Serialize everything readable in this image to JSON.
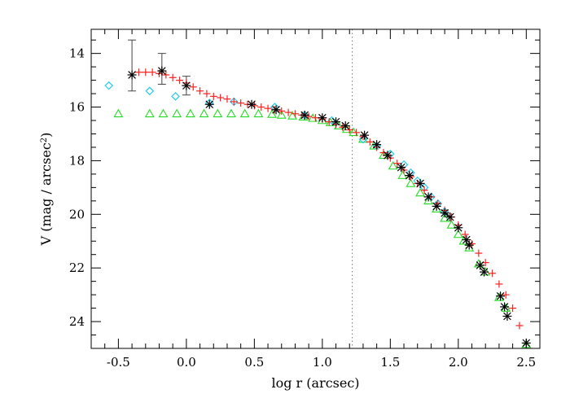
{
  "chart_data": {
    "type": "scatter",
    "title": "",
    "xlabel": "log r (arcsec)",
    "ylabel": {
      "prefix": "V (mag / arcsec",
      "superscript": "2",
      "suffix": ")"
    },
    "xlim": [
      -0.7,
      2.6
    ],
    "ylim": [
      25,
      13.1
    ],
    "y_inverted": true,
    "x_ticks": [
      -0.5,
      0.0,
      0.5,
      1.0,
      1.5,
      2.0,
      2.5
    ],
    "x_tick_labels": [
      "-0.5",
      "0.0",
      "0.5",
      "1.0",
      "1.5",
      "2.0",
      "2.5"
    ],
    "y_ticks": [
      14,
      16,
      18,
      20,
      22,
      24
    ],
    "y_tick_labels": [
      "14",
      "16",
      "18",
      "20",
      "22",
      "24"
    ],
    "vline": {
      "x": 1.22,
      "style": "dotted"
    },
    "grid": false,
    "series": [
      {
        "marker": "plus",
        "color": "#ff2020",
        "x": [
          -0.35,
          -0.3,
          -0.25,
          -0.2,
          -0.15,
          -0.1,
          -0.05,
          0.0,
          0.05,
          0.1,
          0.15,
          0.2,
          0.25,
          0.3,
          0.35,
          0.4,
          0.45,
          0.5,
          0.55,
          0.6,
          0.65,
          0.7,
          0.75,
          0.8,
          0.85,
          0.9,
          0.95,
          1.0,
          1.05,
          1.1,
          1.15,
          1.2,
          1.25,
          1.3,
          1.35,
          1.4,
          1.45,
          1.5,
          1.55,
          1.6,
          1.65,
          1.7,
          1.75,
          1.8,
          1.85,
          1.9,
          1.95,
          2.0,
          2.05,
          2.1,
          2.15,
          2.2,
          2.25,
          2.3,
          2.35,
          2.4,
          2.45
        ],
        "y": [
          14.7,
          14.7,
          14.7,
          14.75,
          14.8,
          14.9,
          15.0,
          15.1,
          15.25,
          15.4,
          15.5,
          15.6,
          15.65,
          15.7,
          15.8,
          15.85,
          15.9,
          15.95,
          16.0,
          16.05,
          16.1,
          16.15,
          16.2,
          16.25,
          16.3,
          16.35,
          16.4,
          16.45,
          16.55,
          16.65,
          16.75,
          16.85,
          16.95,
          17.1,
          17.3,
          17.5,
          17.7,
          17.9,
          18.1,
          18.35,
          18.6,
          18.85,
          19.1,
          19.35,
          19.6,
          19.85,
          20.1,
          20.4,
          20.75,
          21.1,
          21.45,
          21.8,
          22.2,
          22.6,
          23.0,
          23.5,
          24.15
        ]
      },
      {
        "marker": "asterisk",
        "color": "#000000",
        "x": [
          -0.4,
          -0.18,
          0.0,
          0.17,
          0.48,
          0.66,
          0.87,
          1.0,
          1.1,
          1.17,
          1.31,
          1.4,
          1.48,
          1.58,
          1.64,
          1.72,
          1.78,
          1.84,
          1.9,
          1.94,
          2.0,
          2.06,
          2.08,
          2.16,
          2.19,
          2.31,
          2.34,
          2.36,
          2.5
        ],
        "y": [
          14.8,
          14.65,
          15.2,
          15.9,
          15.9,
          16.1,
          16.3,
          16.4,
          16.55,
          16.7,
          17.05,
          17.4,
          17.8,
          18.25,
          18.55,
          18.85,
          19.35,
          19.7,
          19.95,
          20.1,
          20.5,
          20.95,
          21.15,
          21.9,
          22.15,
          23.05,
          23.45,
          23.8,
          24.8
        ]
      },
      {
        "marker": "diamond",
        "color": "#22ccee",
        "x": [
          -0.57,
          -0.27,
          -0.08,
          0.17,
          0.35,
          0.65,
          0.87,
          1.07,
          1.3,
          1.4,
          1.5,
          1.6,
          1.65,
          1.7,
          1.75,
          1.8,
          1.85,
          1.9
        ],
        "y": [
          15.2,
          15.4,
          15.6,
          15.85,
          15.8,
          16.0,
          16.3,
          16.5,
          17.2,
          17.45,
          17.75,
          18.15,
          18.45,
          18.75,
          19.0,
          19.35,
          19.6,
          19.9
        ]
      },
      {
        "marker": "triangle",
        "color": "#22dd22",
        "x": [
          -0.5,
          -0.27,
          -0.17,
          -0.07,
          0.03,
          0.13,
          0.23,
          0.33,
          0.43,
          0.53,
          0.63,
          0.7,
          0.78,
          0.86,
          0.93,
          1.0,
          1.06,
          1.12,
          1.18,
          1.23,
          1.3,
          1.38,
          1.45,
          1.52,
          1.59,
          1.65,
          1.72,
          1.78,
          1.84,
          1.9,
          1.95,
          2.0,
          2.04,
          2.08,
          2.15,
          2.2,
          2.3,
          2.35,
          2.5
        ],
        "y": [
          16.25,
          16.25,
          16.25,
          16.25,
          16.25,
          16.25,
          16.25,
          16.25,
          16.25,
          16.25,
          16.27,
          16.3,
          16.33,
          16.37,
          16.42,
          16.5,
          16.58,
          16.7,
          16.83,
          16.95,
          17.2,
          17.45,
          17.8,
          18.2,
          18.55,
          18.85,
          19.2,
          19.5,
          19.8,
          20.15,
          20.4,
          20.75,
          21.0,
          21.25,
          21.85,
          22.15,
          23.1,
          23.5,
          24.85
        ]
      }
    ],
    "error_bars": [
      {
        "x": -0.4,
        "y_low": 13.5,
        "y_high": 15.4
      },
      {
        "x": -0.18,
        "y_low": 14.0,
        "y_high": 15.15
      },
      {
        "x": 0.0,
        "y_low": 14.85,
        "y_high": 15.55
      }
    ]
  }
}
